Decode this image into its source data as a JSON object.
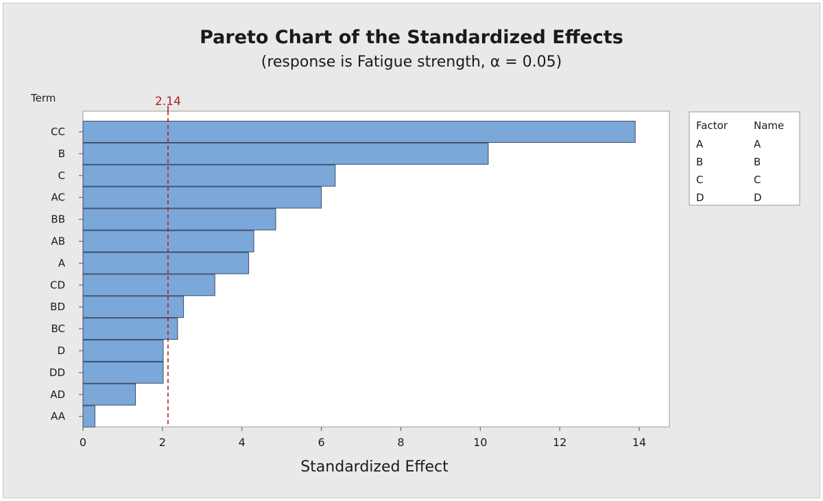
{
  "chart_data": {
    "type": "bar",
    "orientation": "horizontal",
    "title": "Pareto Chart of the Standardized Effects",
    "subtitle": "(response is Fatigue strength, α = 0.05)",
    "xlabel": "Standardized Effect",
    "ylabel": "Term",
    "xlim": [
      0,
      14.8
    ],
    "xticks": [
      0,
      2,
      4,
      6,
      8,
      10,
      12,
      14
    ],
    "categories": [
      "CC",
      "B",
      "C",
      "AC",
      "BB",
      "AB",
      "A",
      "CD",
      "BD",
      "BC",
      "D",
      "DD",
      "AD",
      "AA"
    ],
    "values": [
      13.9,
      10.2,
      6.35,
      6.0,
      4.85,
      4.3,
      4.17,
      3.32,
      2.53,
      2.38,
      2.02,
      2.02,
      1.32,
      0.3
    ],
    "reference_line": {
      "value": 2.14,
      "label": "2.14",
      "color": "#b02020"
    },
    "bar_color": "#7ba7d9",
    "grid": false,
    "legend": {
      "placement": "right",
      "headers": [
        "Factor",
        "Name"
      ],
      "rows": [
        [
          "A",
          "A"
        ],
        [
          "B",
          "B"
        ],
        [
          "C",
          "C"
        ],
        [
          "D",
          "D"
        ]
      ]
    }
  }
}
